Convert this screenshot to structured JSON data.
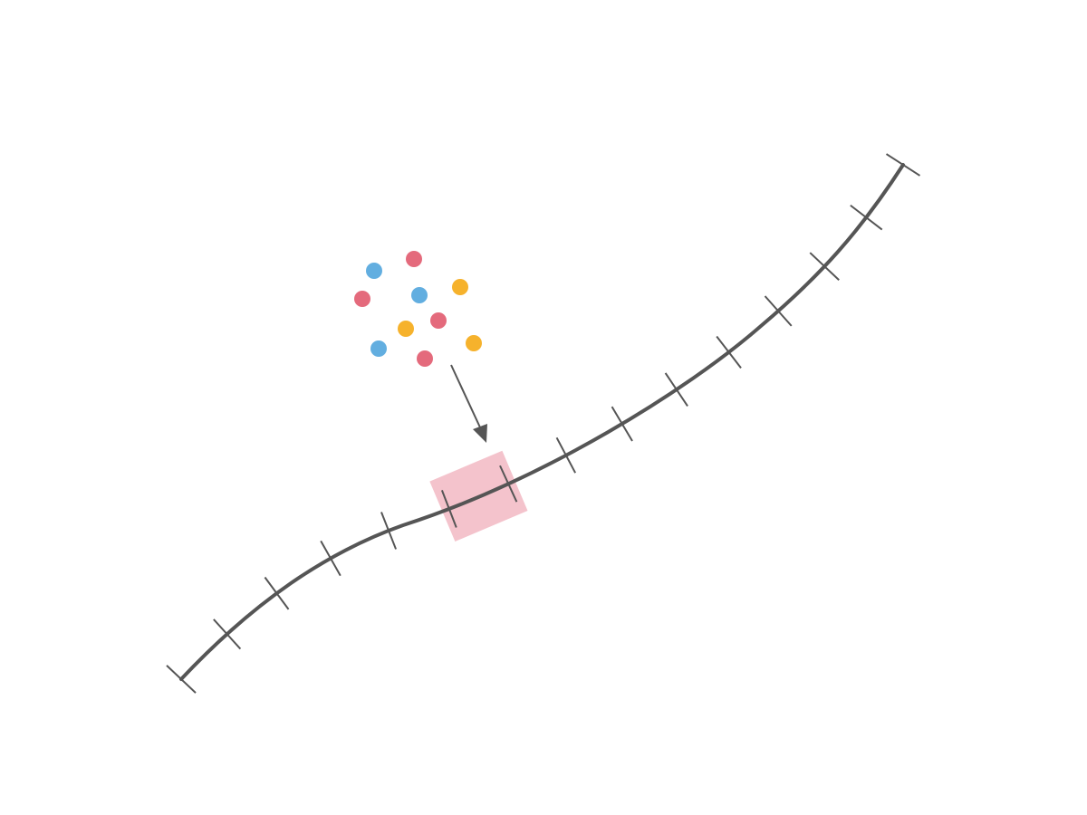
{
  "colors": {
    "curve": "#555555",
    "highlight": "#f4c3cc",
    "arrow": "#555555",
    "dot_blue": "#62aee0",
    "dot_red": "#e46a7c",
    "dot_yellow": "#f6b22c"
  },
  "diagram": {
    "curve_tick_count": 15,
    "highlighted_segment_index": 5,
    "dot_cluster": [
      "blue",
      "red",
      "red",
      "blue",
      "yellow",
      "yellow",
      "red",
      "blue",
      "red",
      "yellow"
    ]
  }
}
